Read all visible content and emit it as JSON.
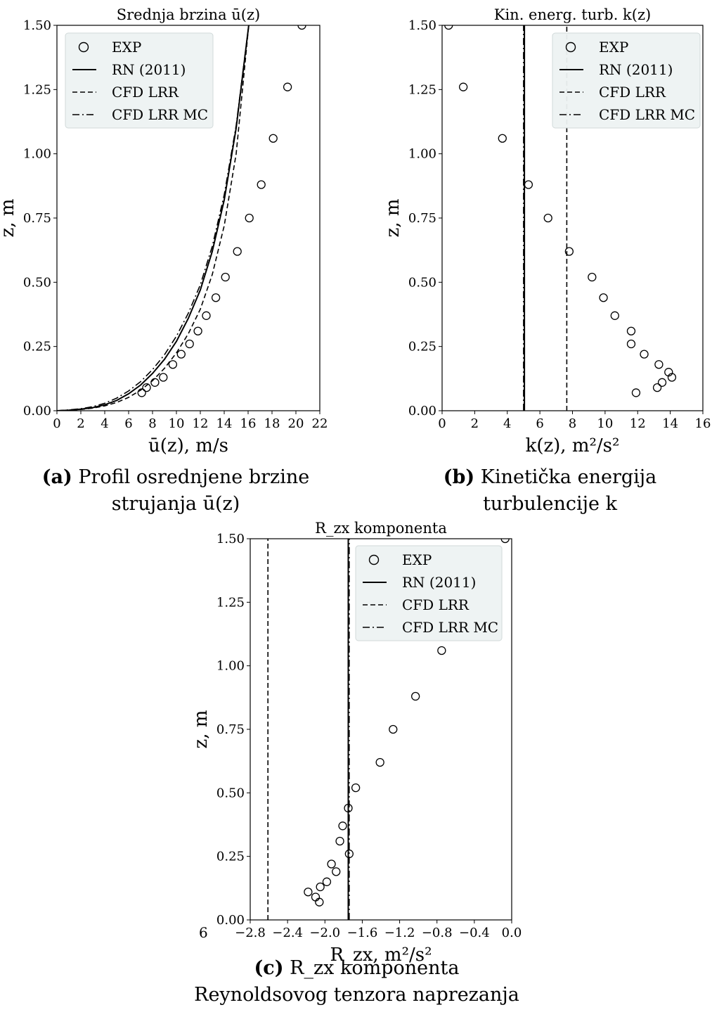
{
  "panels": [
    {
      "id": "a",
      "caption": {
        "tag": "(a)",
        "text": "Profil osrednjene brzine strujanja ū(z)"
      },
      "chart_data": {
        "type": "line",
        "title": "Srednja brzina ū(z)",
        "xlabel": "ū(z), m/s",
        "ylabel": "z, m",
        "xlim": [
          0,
          22
        ],
        "ylim": [
          0,
          1.5
        ],
        "xticks": [
          0,
          2,
          4,
          6,
          8,
          10,
          12,
          14,
          16,
          18,
          20,
          22
        ],
        "yticks": [
          0.0,
          0.25,
          0.5,
          0.75,
          1.0,
          1.25,
          1.5
        ],
        "xtick_labels": [
          "0",
          "2",
          "4",
          "6",
          "8",
          "10",
          "12",
          "14",
          "16",
          "18",
          "20",
          "22"
        ],
        "ytick_labels": [
          "0.00",
          "0.25",
          "0.50",
          "0.75",
          "1.00",
          "1.25",
          "1.50"
        ],
        "grid": false,
        "legend_position": "top-left",
        "series": [
          {
            "name": "EXP",
            "style": "marker",
            "x": [
              7.1,
              7.5,
              8.2,
              8.9,
              9.7,
              10.4,
              11.1,
              11.8,
              12.5,
              13.3,
              14.1,
              15.1,
              16.1,
              17.1,
              18.1,
              19.3,
              20.5
            ],
            "y": [
              0.07,
              0.09,
              0.11,
              0.13,
              0.18,
              0.22,
              0.26,
              0.31,
              0.37,
              0.44,
              0.52,
              0.62,
              0.75,
              0.88,
              1.06,
              1.26,
              1.5
            ]
          },
          {
            "name": "RN (2011)",
            "style": "solid",
            "x": [
              0,
              1,
              2,
              3,
              4,
              5,
              6,
              7,
              8,
              9,
              10,
              11,
              12,
              13,
              14,
              15,
              16.05
            ],
            "y": [
              0,
              0.002,
              0.006,
              0.012,
              0.023,
              0.04,
              0.066,
              0.1,
              0.145,
              0.2,
              0.27,
              0.36,
              0.47,
              0.62,
              0.82,
              1.1,
              1.5
            ]
          },
          {
            "name": "CFD LRR",
            "style": "dashed",
            "x": [
              0,
              1,
              2,
              3,
              4,
              5,
              6,
              7,
              8,
              9,
              10,
              11,
              12,
              13,
              14,
              15,
              16.05
            ],
            "y": [
              0,
              0.002,
              0.005,
              0.01,
              0.019,
              0.032,
              0.052,
              0.08,
              0.117,
              0.165,
              0.225,
              0.3,
              0.395,
              0.53,
              0.72,
              1.0,
              1.5
            ]
          },
          {
            "name": "CFD LRR MC",
            "style": "dashdot",
            "x": [
              0,
              1,
              2,
              3,
              4,
              5,
              6,
              7,
              8,
              9,
              10,
              11,
              12,
              13,
              14,
              15,
              16.05
            ],
            "y": [
              0,
              0.003,
              0.008,
              0.016,
              0.029,
              0.049,
              0.077,
              0.113,
              0.16,
              0.218,
              0.29,
              0.38,
              0.49,
              0.64,
              0.84,
              1.11,
              1.5
            ]
          }
        ]
      }
    },
    {
      "id": "b",
      "caption": {
        "tag": "(b)",
        "text": "Kinetička energija turbulencije k"
      },
      "chart_data": {
        "type": "line",
        "title": "Kin. energ. turb. k(z)",
        "xlabel": "k(z), m²/s²",
        "ylabel": "z, m",
        "xlim": [
          0,
          16
        ],
        "ylim": [
          0,
          1.5
        ],
        "xticks": [
          0,
          2,
          4,
          6,
          8,
          10,
          12,
          14,
          16
        ],
        "yticks": [
          0.0,
          0.25,
          0.5,
          0.75,
          1.0,
          1.25,
          1.5
        ],
        "xtick_labels": [
          "0",
          "2",
          "4",
          "6",
          "8",
          "10",
          "12",
          "14",
          "16"
        ],
        "ytick_labels": [
          "0.00",
          "0.25",
          "0.50",
          "0.75",
          "1.00",
          "1.25",
          "1.50"
        ],
        "grid": false,
        "legend_position": "top-right",
        "series": [
          {
            "name": "EXP",
            "style": "marker",
            "x": [
              11.9,
              13.2,
              13.5,
              14.1,
              13.9,
              13.3,
              12.4,
              11.6,
              11.6,
              10.6,
              9.9,
              9.2,
              7.8,
              6.5,
              5.3,
              3.7,
              1.3,
              0.4
            ],
            "y": [
              0.07,
              0.09,
              0.11,
              0.13,
              0.15,
              0.18,
              0.22,
              0.26,
              0.31,
              0.37,
              0.44,
              0.52,
              0.62,
              0.75,
              0.88,
              1.06,
              1.26,
              1.5
            ]
          },
          {
            "name": "RN (2011)",
            "style": "solid",
            "x": [
              5.05,
              5.05
            ],
            "y": [
              0,
              1.5
            ]
          },
          {
            "name": "CFD LRR",
            "style": "dashed",
            "x": [
              7.65,
              7.65
            ],
            "y": [
              0,
              1.5
            ]
          },
          {
            "name": "CFD LRR MC",
            "style": "dashdot",
            "x": [
              5.0,
              5.0
            ],
            "y": [
              0,
              1.5
            ]
          }
        ]
      }
    },
    {
      "id": "c",
      "caption": {
        "tag": "(c)",
        "text": "R_zx komponenta Reynoldsovog tenzora naprezanja"
      },
      "chart_data": {
        "type": "line",
        "title": "R_zx komponenta",
        "xlabel": "R_zx, m²/s²",
        "ylabel": "z, m",
        "xlim": [
          -2.8,
          0.0
        ],
        "ylim": [
          0,
          1.5
        ],
        "xticks": [
          -2.8,
          -2.4,
          -2.0,
          -1.6,
          -1.2,
          -0.8,
          -0.4,
          0.0
        ],
        "yticks": [
          0.0,
          0.25,
          0.5,
          0.75,
          1.0,
          1.25,
          1.5
        ],
        "xtick_labels": [
          "−2.8",
          "−2.4",
          "−2.0",
          "−1.6",
          "−1.2",
          "−0.8",
          "−0.4",
          "0.0"
        ],
        "ytick_labels": [
          "0.00",
          "0.25",
          "0.50",
          "0.75",
          "1.00",
          "1.25",
          "1.50"
        ],
        "grid": false,
        "legend_position": "top-right",
        "series": [
          {
            "name": "EXP",
            "style": "marker",
            "x": [
              -2.06,
              -2.1,
              -2.18,
              -2.05,
              -1.98,
              -1.88,
              -1.93,
              -1.84,
              -1.81,
              -1.74,
              -1.75,
              -1.67,
              -1.41,
              -1.27,
              -1.03,
              -0.75,
              -0.07
            ],
            "y": [
              0.07,
              0.09,
              0.11,
              0.13,
              0.15,
              0.19,
              0.22,
              0.31,
              0.37,
              0.26,
              0.44,
              0.52,
              0.62,
              0.75,
              0.88,
              1.06,
              1.5
            ]
          },
          {
            "name": "RN (2011)",
            "style": "solid",
            "x": [
              -1.75,
              -1.75
            ],
            "y": [
              0,
              1.5
            ]
          },
          {
            "name": "CFD LRR",
            "style": "dashed",
            "x": [
              -2.61,
              -2.61
            ],
            "y": [
              0,
              1.5
            ]
          },
          {
            "name": "CFD LRR MC",
            "style": "dashdot",
            "x": [
              -1.74,
              -1.74
            ],
            "y": [
              0,
              1.5
            ]
          }
        ]
      }
    }
  ],
  "legend_entries": [
    "EXP",
    "RN (2011)",
    "CFD LRR",
    "CFD LRR MC"
  ],
  "stray_text": "6"
}
